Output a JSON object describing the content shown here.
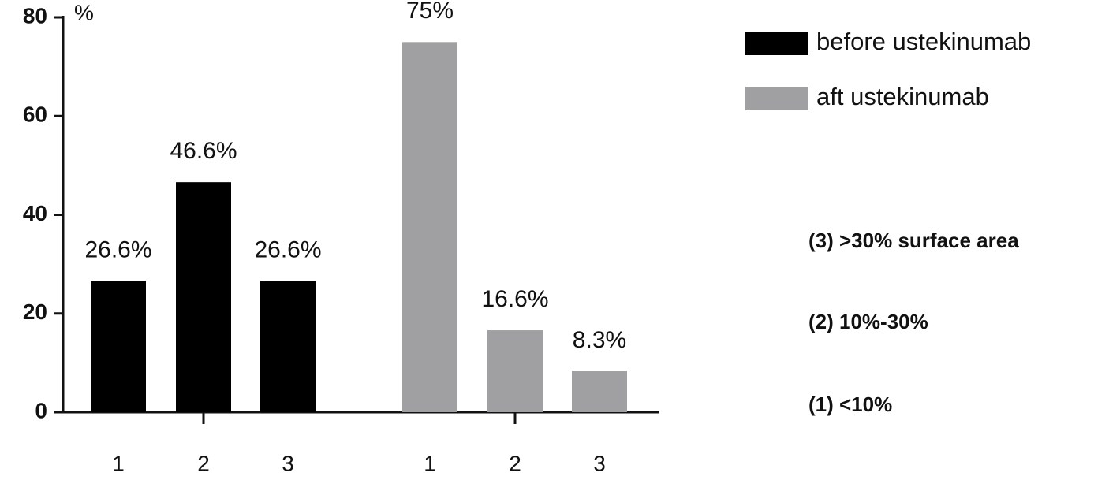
{
  "chart_data": {
    "type": "bar",
    "y_label": "%",
    "categories": [
      "1",
      "2",
      "3",
      "1",
      "2",
      "3"
    ],
    "series": [
      {
        "name": "before ustekinumab",
        "color": "#000000",
        "values": [
          26.6,
          46.6,
          26.6,
          null,
          null,
          null
        ],
        "value_labels": [
          "26.6%",
          "46.6%",
          "26.6%",
          null,
          null,
          null
        ]
      },
      {
        "name": "aft ustekinumab",
        "color": "#a0a0a3",
        "values": [
          null,
          null,
          null,
          75,
          16.6,
          8.3
        ],
        "value_labels": [
          null,
          null,
          null,
          "75%",
          "16.6%",
          "8.3%"
        ]
      }
    ],
    "ylim": [
      0,
      80
    ],
    "yticks": [
      0,
      20,
      40,
      60,
      80
    ],
    "annotations": [
      "(3) >30% surface area",
      "(2) 10%-30%",
      "(1) <10%"
    ]
  }
}
